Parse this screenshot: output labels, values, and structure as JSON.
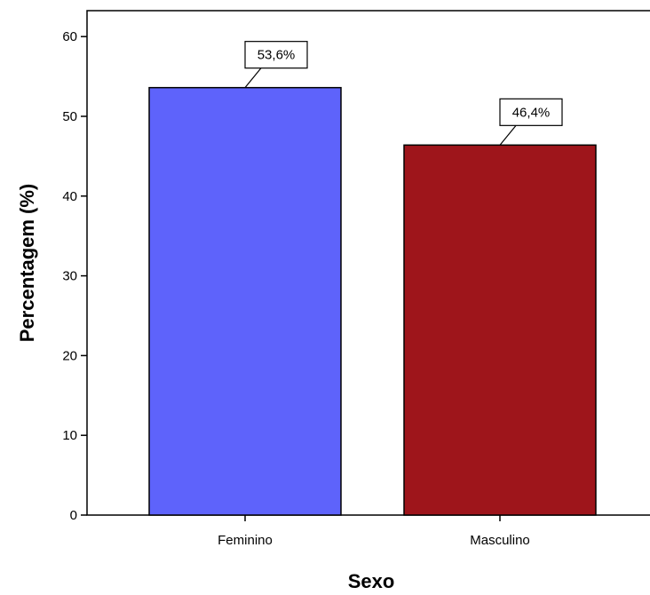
{
  "chart_data": {
    "type": "bar",
    "title": "",
    "xlabel": "Sexo",
    "ylabel": "Percentagem (%)",
    "ylim": [
      0,
      63
    ],
    "yticks": [
      0,
      10,
      20,
      30,
      40,
      50,
      60
    ],
    "categories": [
      "Feminino",
      "Masculino"
    ],
    "values": [
      53.6,
      46.4
    ],
    "data_labels": [
      "53,6%",
      "46,4%"
    ],
    "colors": [
      "#5e63fb",
      "#9e151b"
    ],
    "grid": false,
    "legend": "none"
  }
}
